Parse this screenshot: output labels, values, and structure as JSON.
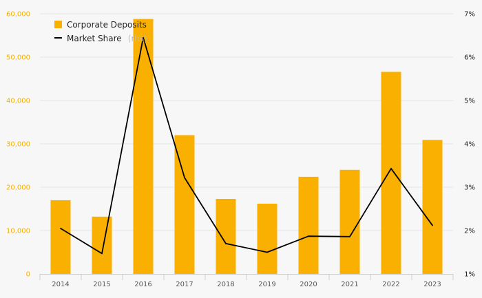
{
  "chart_data": {
    "type": "bar",
    "categories": [
      "2014",
      "2015",
      "2016",
      "2017",
      "2018",
      "2019",
      "2020",
      "2021",
      "2022",
      "2023"
    ],
    "series": [
      {
        "name": "Corporate Deposits",
        "type": "bar",
        "axis": "left",
        "color": "#f9b000",
        "values": [
          17000,
          13200,
          58800,
          32000,
          17300,
          16200,
          22400,
          24000,
          46600,
          30900
        ]
      },
      {
        "name": "Market Share",
        "legend_suffix": "(rhs)",
        "type": "line",
        "axis": "right",
        "color": "#000000",
        "values": [
          2.05,
          1.47,
          6.45,
          3.22,
          1.7,
          1.5,
          1.87,
          1.86,
          3.43,
          2.12
        ]
      }
    ],
    "y_left": {
      "ylim": [
        0,
        60000
      ],
      "ticks": [
        0,
        10000,
        20000,
        30000,
        40000,
        50000,
        60000
      ],
      "tick_labels": [
        "0",
        "10,000",
        "20,000",
        "30,000",
        "40,000",
        "50,000",
        "60,000"
      ]
    },
    "y_right": {
      "ylim": [
        1,
        7
      ],
      "ticks": [
        1,
        2,
        3,
        4,
        5,
        6,
        7
      ],
      "tick_labels": [
        "1%",
        "2%",
        "3%",
        "4%",
        "5%",
        "6%",
        "7%"
      ]
    },
    "grid": true,
    "legend_position": "top-left"
  }
}
